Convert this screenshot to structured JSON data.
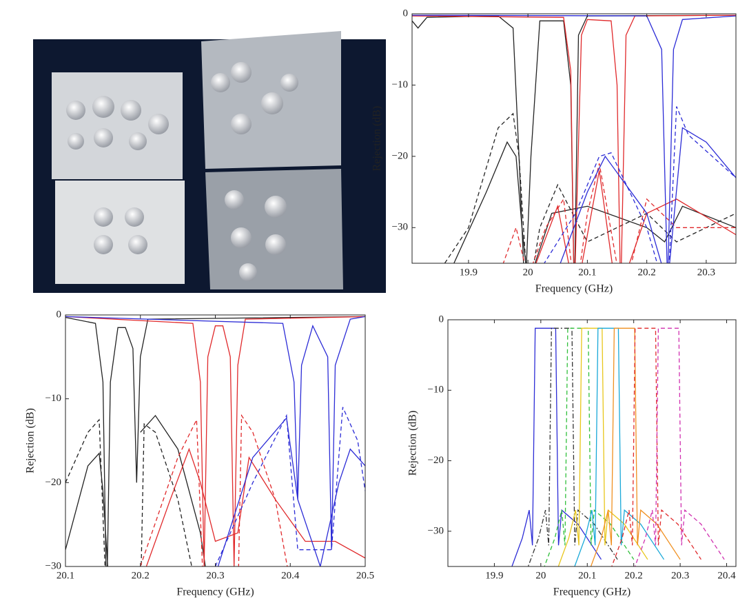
{
  "chart_data": [
    {
      "type": "line",
      "xlabel": "Frequency (GHz)",
      "ylabel": "Rejection (dB)",
      "xlim": [
        19.805,
        20.35
      ],
      "ylim": [
        -35,
        0
      ],
      "xticks": [
        19.9,
        20,
        20.1,
        20.2,
        20.3
      ],
      "yticks": [
        {
          "value": -30,
          "label": "−30"
        },
        {
          "value": -20,
          "label": "−20"
        },
        {
          "value": -10,
          "label": "−10"
        },
        0
      ],
      "series": [
        {
          "color": "#222222",
          "style": "solid",
          "x": [
            19.805,
            19.815,
            19.83,
            19.95,
            19.975,
            19.985,
            19.995,
            20.005,
            20.02,
            20.06,
            20.072,
            20.078,
            20.085,
            20.1,
            20.35
          ],
          "values": [
            -1,
            -2,
            -0.5,
            -0.3,
            -2,
            -20,
            -40,
            -20,
            -1,
            -1,
            -10,
            -40,
            -3,
            -0.3,
            -0.2
          ]
        },
        {
          "color": "#222222",
          "style": "dashed",
          "x": [
            19.86,
            19.9,
            19.95,
            19.975,
            19.985,
            20.0,
            20.02,
            20.05,
            20.1,
            20.2,
            20.25,
            20.35
          ],
          "values": [
            -35,
            -30,
            -16,
            -14,
            -20,
            -40,
            -30,
            -24,
            -32,
            -28,
            -32,
            -28
          ]
        },
        {
          "color": "#222222",
          "style": "solid",
          "x": [
            19.87,
            19.93,
            19.965,
            19.98,
            19.99,
            20.0,
            20.04,
            20.1,
            20.2,
            20.23,
            20.26,
            20.35
          ],
          "values": [
            -36,
            -25,
            -18,
            -20,
            -30,
            -38,
            -28,
            -27,
            -30,
            -32,
            -27,
            -30
          ]
        },
        {
          "color": "#e0282a",
          "style": "solid",
          "x": [
            19.805,
            20.06,
            20.072,
            20.078,
            20.09,
            20.1,
            20.14,
            20.15,
            20.156,
            20.165,
            20.18,
            20.35
          ],
          "values": [
            -0.3,
            -0.5,
            -8,
            -40,
            -3,
            -0.8,
            -1,
            -10,
            -40,
            -3,
            -0.3,
            -0.2
          ]
        },
        {
          "color": "#e0282a",
          "style": "dashed",
          "x": [
            19.95,
            19.98,
            20.0,
            20.03,
            20.06,
            20.08,
            20.1,
            20.12,
            20.16,
            20.2,
            20.25,
            20.35
          ],
          "values": [
            -37,
            -30,
            -37,
            -30,
            -26,
            -40,
            -28,
            -21,
            -40,
            -26,
            -30,
            -30
          ]
        },
        {
          "color": "#e0282a",
          "style": "solid",
          "x": [
            20.0,
            20.05,
            20.08,
            20.12,
            20.15,
            20.2,
            20.25,
            20.35
          ],
          "values": [
            -38,
            -27,
            -40,
            -22,
            -40,
            -28,
            -26,
            -31
          ]
        },
        {
          "color": "#2b2bd6",
          "style": "solid",
          "x": [
            19.805,
            20.2,
            20.225,
            20.235,
            20.245,
            20.26,
            20.35
          ],
          "values": [
            -0.2,
            -0.3,
            -5,
            -38,
            -5,
            -0.8,
            -0.3
          ]
        },
        {
          "color": "#2b2bd6",
          "style": "dashed",
          "x": [
            20.02,
            20.08,
            20.12,
            20.14,
            20.2,
            20.235,
            20.25,
            20.27,
            20.35
          ],
          "values": [
            -36,
            -28,
            -20,
            -19.5,
            -30,
            -40,
            -13,
            -17,
            -23
          ]
        },
        {
          "color": "#2b2bd6",
          "style": "solid",
          "x": [
            20.05,
            20.1,
            20.13,
            20.2,
            20.235,
            20.26,
            20.3,
            20.35
          ],
          "values": [
            -36,
            -25,
            -20,
            -28,
            -38,
            -16,
            -18,
            -23
          ]
        }
      ]
    },
    {
      "type": "line",
      "xlabel": "Frequency (GHz)",
      "ylabel": "Rejection (dB)",
      "xlim": [
        20.1,
        20.5
      ],
      "ylim": [
        -30,
        0
      ],
      "xticks": [
        20.1,
        20.2,
        20.3,
        20.4,
        20.5
      ],
      "yticks": [
        {
          "value": -30,
          "label": "−30"
        },
        {
          "value": -20,
          "label": "−20"
        },
        {
          "value": -10,
          "label": "−10"
        },
        0
      ],
      "series": [
        {
          "color": "#222222",
          "style": "solid",
          "x": [
            20.1,
            20.14,
            20.15,
            20.155,
            20.16,
            20.17,
            20.18,
            20.19,
            20.195,
            20.2,
            20.21,
            20.5
          ],
          "values": [
            -0.3,
            -1,
            -8,
            -35,
            -8,
            -1.5,
            -1.5,
            -4,
            -20,
            -5,
            -0.5,
            -0.2
          ]
        },
        {
          "color": "#222222",
          "style": "dashed",
          "x": [
            20.1,
            20.13,
            20.145,
            20.155,
            20.2,
            20.205,
            20.22,
            20.25,
            20.28
          ],
          "values": [
            -20,
            -14,
            -12.5,
            -35,
            -35,
            -13,
            -14,
            -22,
            -35
          ]
        },
        {
          "color": "#222222",
          "style": "solid",
          "x": [
            20.1,
            20.13,
            20.145,
            20.15,
            20.16,
            20.18,
            20.2,
            20.22,
            20.25,
            20.28,
            20.29
          ],
          "values": [
            -28,
            -18,
            -16.5,
            -21,
            -35,
            null,
            -14,
            -12,
            -16,
            -26,
            -32
          ]
        },
        {
          "color": "#e0282a",
          "style": "solid",
          "x": [
            20.1,
            20.27,
            20.28,
            20.285,
            20.29,
            20.3,
            20.31,
            20.32,
            20.325,
            20.33,
            20.34,
            20.5
          ],
          "values": [
            -0.2,
            -1,
            -8,
            -30,
            -5,
            -1.3,
            -1.3,
            -5,
            -30,
            -6,
            -0.5,
            -0.2
          ]
        },
        {
          "color": "#e0282a",
          "style": "dashed",
          "x": [
            20.2,
            20.25,
            20.275,
            20.285,
            20.33,
            20.335,
            20.35,
            20.38,
            20.4
          ],
          "values": [
            -30,
            -17,
            -12.5,
            -35,
            -35,
            -12,
            -14,
            -22,
            -32
          ]
        },
        {
          "color": "#e0282a",
          "style": "solid",
          "x": [
            20.2,
            20.24,
            20.265,
            20.28,
            20.3,
            20.33,
            20.345,
            20.38,
            20.42,
            20.46,
            20.5
          ],
          "values": [
            -32,
            -22,
            -16,
            -20,
            -27,
            -26,
            -17,
            -22,
            -27,
            -27,
            -29
          ]
        },
        {
          "color": "#2b2bd6",
          "style": "solid",
          "x": [
            20.1,
            20.39,
            20.405,
            20.41,
            20.415,
            20.43,
            20.45,
            20.455,
            20.46,
            20.48,
            20.5
          ],
          "values": [
            -0.2,
            -1,
            -8,
            -22,
            -6,
            -1.3,
            -5,
            -28,
            -6,
            -0.5,
            -0.2
          ]
        },
        {
          "color": "#2b2bd6",
          "style": "dashed",
          "x": [
            20.3,
            20.35,
            20.395,
            20.41,
            20.43,
            20.455,
            20.47,
            20.49,
            20.5
          ],
          "values": [
            -30,
            -20,
            -12,
            -28,
            -28,
            -28,
            -11,
            -15,
            -21
          ]
        },
        {
          "color": "#2b2bd6",
          "style": "solid",
          "x": [
            20.3,
            20.35,
            20.395,
            20.41,
            20.44,
            20.465,
            20.48,
            20.5
          ],
          "values": [
            -31,
            -17,
            -12.3,
            -22,
            -30,
            -20,
            -16,
            -18
          ]
        }
      ]
    },
    {
      "type": "line",
      "xlabel": "Frequency (GHz)",
      "ylabel": "Rejection (dB)",
      "xlim": [
        19.8,
        20.42
      ],
      "ylim": [
        -35,
        0
      ],
      "xticks": [
        19.9,
        20,
        20.1,
        20.2,
        20.3,
        20.4
      ],
      "yticks": [
        {
          "value": -30,
          "label": "−30"
        },
        {
          "value": -20,
          "label": "−20"
        },
        {
          "value": -10,
          "label": "−10"
        },
        0
      ],
      "series": [
        {
          "color": "#2b2bd6",
          "style": "solid",
          "x": [
            19.91,
            19.96,
            19.975,
            19.982,
            19.988,
            20.032,
            20.038,
            20.045,
            20.08,
            20.13
          ],
          "values": [
            -40,
            -31,
            -27,
            -32,
            -1.2,
            -1.2,
            -32,
            -27,
            -29,
            -34
          ]
        },
        {
          "color": "#333333",
          "style": "dashdot",
          "x": [
            19.945,
            19.995,
            20.01,
            20.017,
            20.023,
            20.067,
            20.073,
            20.08,
            20.115,
            20.165
          ],
          "values": [
            -40,
            -31,
            -27,
            -32,
            -1.2,
            -1.2,
            -32,
            -27,
            -29,
            -34
          ]
        },
        {
          "color": "#2fbf3a",
          "style": "dashed",
          "x": [
            19.98,
            20.03,
            20.045,
            20.052,
            20.058,
            20.102,
            20.108,
            20.115,
            20.15,
            20.2
          ],
          "values": [
            -40,
            -31,
            -27,
            -32,
            -1.2,
            -1.2,
            -32,
            -27,
            -29,
            -34
          ]
        },
        {
          "color": "#e8c61a",
          "style": "solid",
          "x": [
            20.01,
            20.06,
            20.075,
            20.082,
            20.088,
            20.132,
            20.138,
            20.145,
            20.18,
            20.23
          ],
          "values": [
            -40,
            -31,
            -27,
            -32,
            -1.2,
            -1.2,
            -32,
            -27,
            -29,
            -34
          ]
        },
        {
          "color": "#18a8d8",
          "style": "solid",
          "x": [
            20.045,
            20.095,
            20.11,
            20.117,
            20.123,
            20.167,
            20.173,
            20.18,
            20.215,
            20.265
          ],
          "values": [
            -40,
            -31,
            -27,
            -32,
            -1.2,
            -1.2,
            -32,
            -27,
            -29,
            -34
          ]
        },
        {
          "color": "#f09020",
          "style": "solid",
          "x": [
            20.08,
            20.13,
            20.145,
            20.152,
            20.158,
            20.202,
            20.208,
            20.215,
            20.25,
            20.3
          ],
          "values": [
            -40,
            -31,
            -27,
            -32,
            -1.2,
            -1.2,
            -32,
            -27,
            -29,
            -34
          ]
        },
        {
          "color": "#e0282a",
          "style": "dashed",
          "x": [
            20.125,
            20.175,
            20.19,
            20.197,
            20.203,
            20.247,
            20.253,
            20.26,
            20.295,
            20.345
          ],
          "values": [
            -40,
            -31,
            -27,
            -32,
            -1.2,
            -1.2,
            -32,
            -27,
            -29,
            -34
          ]
        },
        {
          "color": "#d030b0",
          "style": "dashed",
          "x": [
            20.175,
            20.225,
            20.24,
            20.247,
            20.253,
            20.297,
            20.303,
            20.31,
            20.345,
            20.395
          ],
          "values": [
            -40,
            -31,
            -27,
            -32,
            -1.2,
            -1.2,
            -32,
            -27,
            -29,
            -34
          ]
        }
      ]
    }
  ]
}
